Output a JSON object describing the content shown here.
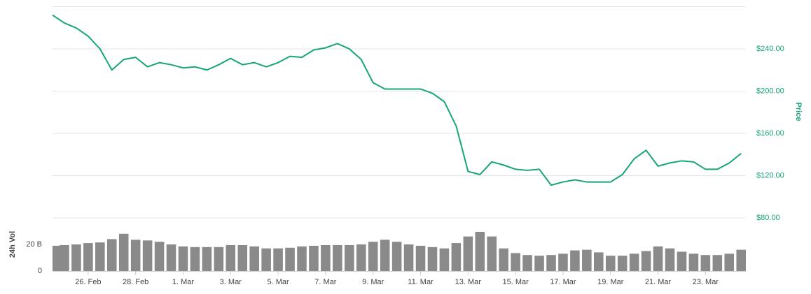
{
  "chart_data": [
    {
      "type": "line",
      "y_label": "Price",
      "color": "#16a578",
      "x": [
        -1.5,
        -1,
        -0.5,
        0,
        0.5,
        1,
        1.5,
        2,
        2.5,
        3,
        3.5,
        4,
        4.5,
        5,
        5.5,
        6,
        6.5,
        7,
        7.5,
        8,
        8.5,
        9,
        9.5,
        10,
        10.5,
        11,
        11.5,
        12,
        12.5,
        13,
        13.5,
        14,
        14.5,
        15,
        15.5,
        16,
        16.5,
        17,
        17.5,
        18,
        18.5,
        19,
        19.5,
        20,
        20.5,
        21,
        21.5,
        22,
        22.5,
        23,
        23.5,
        24,
        24.5,
        25,
        25.5,
        26,
        26.5,
        27,
        27.5
      ],
      "values": [
        272,
        264.5,
        259.8,
        252,
        240,
        220,
        230,
        232,
        223,
        227,
        225,
        222,
        223,
        220,
        225,
        231,
        225,
        227,
        223,
        227,
        233,
        232,
        239,
        241,
        245,
        240,
        230,
        208,
        202,
        202,
        202,
        202,
        198,
        190,
        167,
        124,
        121,
        133,
        130,
        126,
        125,
        126,
        111,
        114,
        116,
        114,
        114,
        114,
        121,
        136,
        144,
        129,
        132,
        134,
        133,
        126,
        126,
        132,
        141
      ],
      "xlim": [
        -1.5,
        27.7
      ],
      "ylim": [
        80,
        280
      ],
      "yticks": [
        {
          "value": 80,
          "label": "$80.00"
        },
        {
          "value": 120,
          "label": "$120.00"
        },
        {
          "value": 160,
          "label": "$160.00"
        },
        {
          "value": 200,
          "label": "$200.00"
        },
        {
          "value": 240,
          "label": "$240.00"
        }
      ],
      "grid": true
    },
    {
      "type": "bar",
      "y_label": "24h Vol",
      "color": "#8a8a8a",
      "x": [
        -1.5,
        -1,
        -0.5,
        0,
        0.5,
        1,
        1.5,
        2,
        2.5,
        3,
        3.5,
        4,
        4.5,
        5,
        5.5,
        6,
        6.5,
        7,
        7.5,
        8,
        8.5,
        9,
        9.5,
        10,
        10.5,
        11,
        11.5,
        12,
        12.5,
        13,
        13.5,
        14,
        14.5,
        15,
        15.5,
        16,
        16.5,
        17,
        17.5,
        18,
        18.5,
        19,
        19.5,
        20,
        20.5,
        21,
        21.5,
        22,
        22.5,
        23,
        23.5,
        24,
        24.5,
        25,
        25.5,
        26,
        26.5,
        27,
        27.5
      ],
      "values": [
        19,
        19.5,
        20,
        21,
        21.5,
        24,
        28,
        23.5,
        23,
        22,
        20,
        18.5,
        18,
        18,
        18,
        19.5,
        19.5,
        18.5,
        17,
        17,
        17.5,
        18.5,
        19,
        19.5,
        19.5,
        19.5,
        20,
        22,
        23.5,
        22,
        20,
        19,
        18,
        17,
        21,
        26,
        29.5,
        26,
        17,
        13.5,
        12,
        11.5,
        12,
        13,
        15.5,
        16,
        14,
        11.5,
        11.5,
        13,
        15,
        18.5,
        17,
        14.5,
        13,
        12,
        12,
        13,
        16
      ],
      "xlim": [
        -1.5,
        27.7
      ],
      "ylim": [
        0,
        40
      ],
      "yticks": [
        0,
        {
          "value": 20,
          "label": "20 B"
        }
      ],
      "xticks": [
        {
          "value": 0,
          "label": "26. Feb"
        },
        {
          "value": 2,
          "label": "28. Feb"
        },
        {
          "value": 4,
          "label": "1. Mar"
        },
        {
          "value": 6,
          "label": "3. Mar"
        },
        {
          "value": 8,
          "label": "5. Mar"
        },
        {
          "value": 10,
          "label": "7. Mar"
        },
        {
          "value": 12,
          "label": "9. Mar"
        },
        {
          "value": 14,
          "label": "11. Mar"
        },
        {
          "value": 16,
          "label": "13. Mar"
        },
        {
          "value": 18,
          "label": "15. Mar"
        },
        {
          "value": 20,
          "label": "17. Mar"
        },
        {
          "value": 22,
          "label": "19. Mar"
        },
        {
          "value": 24,
          "label": "21. Mar"
        },
        {
          "value": 26,
          "label": "23. Mar"
        }
      ]
    }
  ]
}
